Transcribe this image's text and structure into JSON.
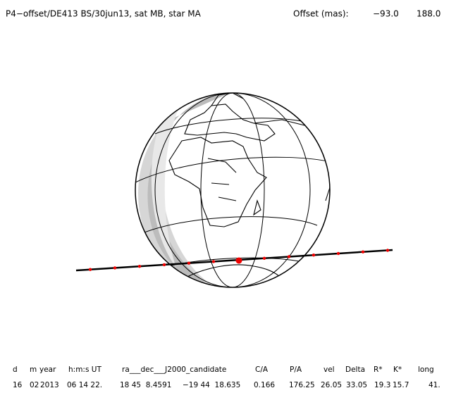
{
  "header": {
    "title": "P4−offset/DE413 BS/30jun13, sat MB, star MA",
    "offset_label": "Offset (mas):",
    "offset_values": [
      "−93.0",
      "188.0"
    ]
  },
  "table": {
    "columns": [
      "d",
      "m",
      "year",
      "h:m:s UT",
      "ra___dec___J2000_candidate",
      "C/A",
      "P/A",
      "vel",
      "Delta",
      "R*",
      "K*",
      "long"
    ],
    "rows": [
      [
        "16",
        "02",
        "2013",
        "06 14 22.",
        "18 45  8.4591",
        "−19 44  18.635",
        "0.166",
        "176.25",
        "26.05",
        "33.05",
        "19.3",
        "15.7",
        "41."
      ]
    ]
  }
}
